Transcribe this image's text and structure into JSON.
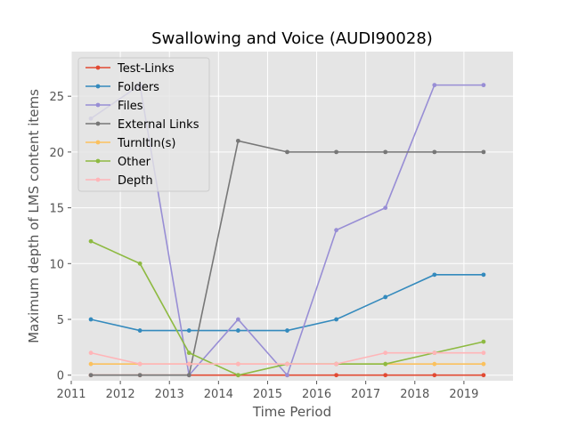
{
  "chart_data": {
    "type": "line",
    "title": "Swallowing and Voice (AUDI90028)",
    "xlabel": "Time Period",
    "ylabel": "Maximum depth of LMS content items",
    "xlim": [
      2011,
      2020
    ],
    "ylim": [
      -0.5,
      29
    ],
    "xticks": [
      2011,
      2012,
      2013,
      2014,
      2015,
      2016,
      2017,
      2018,
      2019
    ],
    "yticks": [
      0,
      5,
      10,
      15,
      20,
      25
    ],
    "grid": true,
    "legend_position": "top-left",
    "x": [
      2011.4,
      2012.4,
      2013.4,
      2014.4,
      2015.4,
      2016.4,
      2017.4,
      2018.4,
      2019.4
    ],
    "series": [
      {
        "name": "Test-Links",
        "color": "#e24a33",
        "values": [
          0,
          0,
          0,
          0,
          0,
          0,
          0,
          0,
          0
        ]
      },
      {
        "name": "Folders",
        "color": "#348abd",
        "values": [
          5,
          4,
          4,
          4,
          4,
          5,
          7,
          9,
          9
        ]
      },
      {
        "name": "Files",
        "color": "#988ed5",
        "values": [
          23,
          26,
          0,
          5,
          0,
          13,
          15,
          26,
          26
        ]
      },
      {
        "name": "External Links",
        "color": "#777777",
        "values": [
          0,
          0,
          0,
          21,
          20,
          20,
          20,
          20,
          20
        ]
      },
      {
        "name": "TurnItIn(s)",
        "color": "#fbc15e",
        "values": [
          1,
          1,
          1,
          1,
          1,
          1,
          1,
          1,
          1
        ]
      },
      {
        "name": "Other",
        "color": "#8eba42",
        "values": [
          12,
          10,
          2,
          0,
          1,
          1,
          1,
          2,
          3
        ]
      },
      {
        "name": "Depth",
        "color": "#ffb5b8",
        "values": [
          2,
          1,
          1,
          1,
          1,
          1,
          2,
          2,
          2
        ]
      }
    ]
  }
}
